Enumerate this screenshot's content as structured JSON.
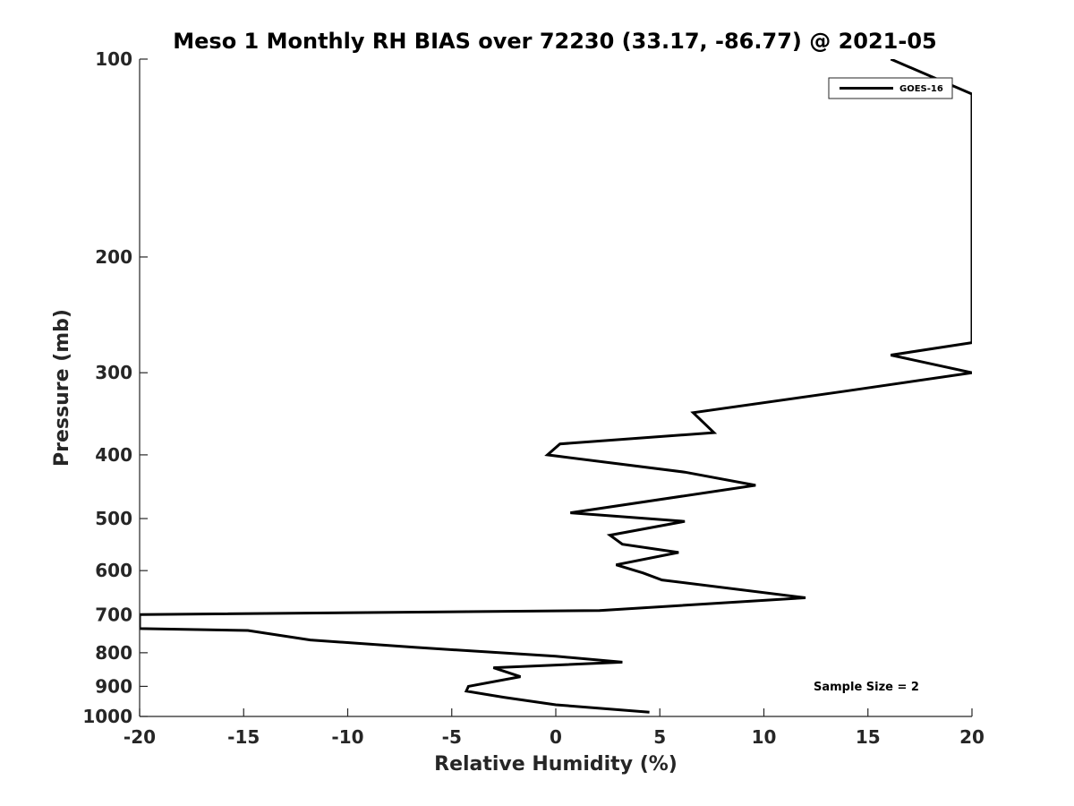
{
  "chart_data": {
    "type": "line",
    "title": "Meso 1 Monthly RH BIAS over 72230 (33.17, -86.77) @ 2021-05",
    "xlabel": "Relative Humidity (%)",
    "ylabel": "Pressure (mb)",
    "xlim": [
      -20,
      20
    ],
    "ylim": [
      100,
      1000
    ],
    "y_scale": "log",
    "y_reversed": true,
    "grid": false,
    "legend_position": "top-right",
    "x_ticks": [
      "-20",
      "-15",
      "-10",
      "-5",
      "0",
      "5",
      "10",
      "15",
      "20"
    ],
    "y_ticks": [
      "100",
      "200",
      "300",
      "400",
      "500",
      "600",
      "700",
      "800",
      "900",
      "1000"
    ],
    "annotation": "Sample Size = 2",
    "series": [
      {
        "name": "GOES-16",
        "color": "#000000",
        "points": [
          [
            16.1,
            100
          ],
          [
            20.0,
            113
          ],
          [
            20.0,
            270
          ],
          [
            16.1,
            282
          ],
          [
            20.0,
            300
          ],
          [
            13.9,
            320
          ],
          [
            6.6,
            345
          ],
          [
            7.6,
            370
          ],
          [
            0.2,
            385
          ],
          [
            -0.4,
            400
          ],
          [
            6.2,
            425
          ],
          [
            9.6,
            445
          ],
          [
            0.7,
            490
          ],
          [
            6.2,
            505
          ],
          [
            2.6,
            530
          ],
          [
            3.2,
            547
          ],
          [
            5.9,
            563
          ],
          [
            2.9,
            588
          ],
          [
            4.2,
            605
          ],
          [
            5.1,
            620
          ],
          [
            12.0,
            660
          ],
          [
            2.1,
            690
          ],
          [
            -20.0,
            700
          ],
          [
            -20.0,
            735
          ],
          [
            -14.8,
            740
          ],
          [
            -11.8,
            765
          ],
          [
            -6.8,
            785
          ],
          [
            0.0,
            810
          ],
          [
            3.2,
            827
          ],
          [
            -3.0,
            843
          ],
          [
            -1.7,
            870
          ],
          [
            -4.2,
            900
          ],
          [
            -4.3,
            915
          ],
          [
            -2.5,
            935
          ],
          [
            0.0,
            960
          ],
          [
            4.5,
            985
          ]
        ]
      }
    ]
  }
}
